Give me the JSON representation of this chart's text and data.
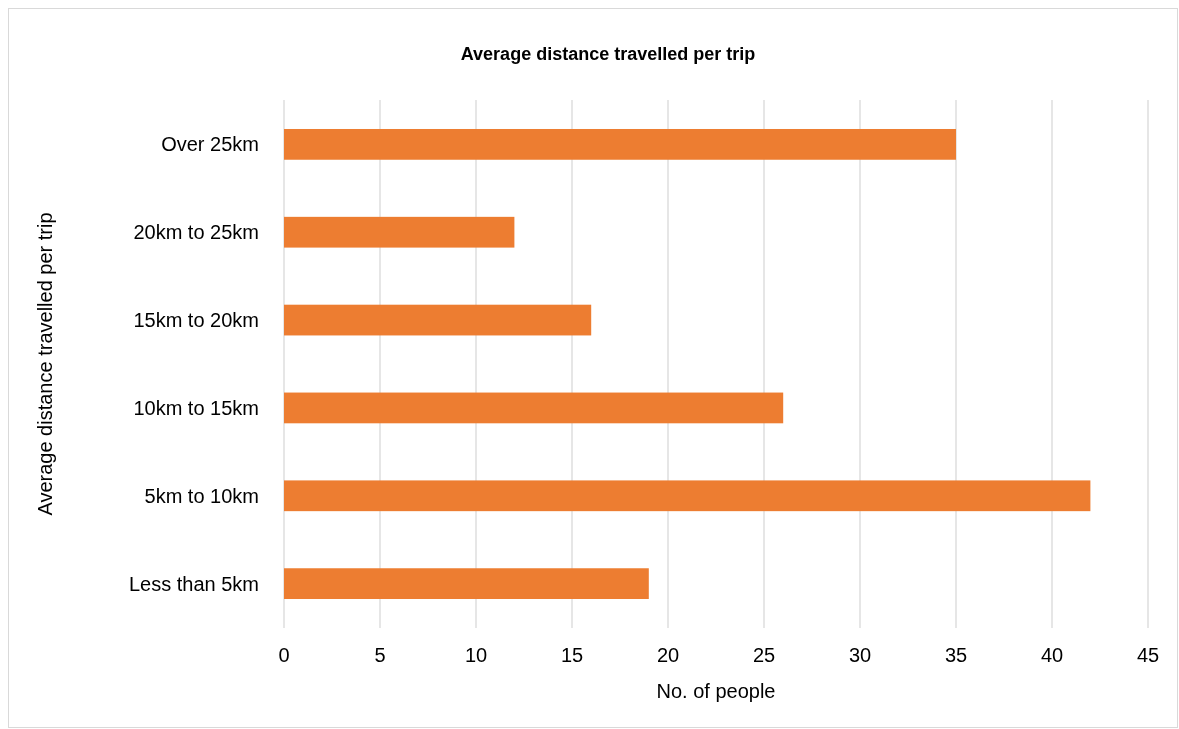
{
  "chart_data": {
    "type": "bar",
    "orientation": "horizontal",
    "title": "Average distance travelled per trip",
    "xlabel": "No. of people",
    "ylabel": "Average distance travelled per trip",
    "categories": [
      "Over 25km",
      "20km to 25km",
      "15km to 20km",
      "10km to 15km",
      "5km to 10km",
      "Less than 5km"
    ],
    "values": [
      35,
      12,
      16,
      26,
      42,
      19
    ],
    "color": "#ed7d31",
    "xlim": [
      0,
      45
    ],
    "xticks": [
      0,
      5,
      10,
      15,
      20,
      25,
      30,
      35,
      40,
      45
    ],
    "grid": "x"
  }
}
